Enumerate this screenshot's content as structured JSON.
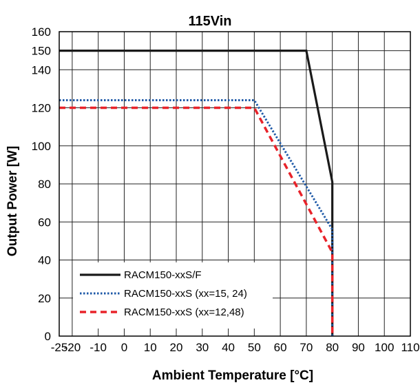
{
  "chart_data": {
    "type": "line",
    "title": "115Vin",
    "xlabel": "Ambient Temperature [°C]",
    "ylabel": "Output Power [W]",
    "xlim": [
      -25,
      110
    ],
    "ylim": [
      0,
      160
    ],
    "xticks": [
      "-25",
      "-20",
      "-10",
      "0",
      "10",
      "20",
      "30",
      "40",
      "50",
      "60",
      "70",
      "80",
      "90",
      "100",
      "110"
    ],
    "yticks": [
      "0",
      "20",
      "40",
      "60",
      "80",
      "100",
      "120",
      "140",
      "150",
      "160"
    ],
    "grid": true,
    "legend_position": "bottom-left",
    "series": [
      {
        "name": "RACM150-xxS/F",
        "color": "#1a1a1a",
        "style": "solid",
        "x": [
          -25,
          70,
          80,
          80
        ],
        "y": [
          150,
          150,
          81,
          0
        ]
      },
      {
        "name": "RACM150-xxS (xx=15, 24)",
        "color": "#1f5aa8",
        "style": "dotted",
        "x": [
          -25,
          50,
          80,
          80
        ],
        "y": [
          124,
          124,
          56,
          0
        ]
      },
      {
        "name": "RACM150-xxS (xx=12,48)",
        "color": "#e8232a",
        "style": "dashed",
        "x": [
          -25,
          50,
          80,
          80
        ],
        "y": [
          120,
          120,
          44,
          0
        ]
      }
    ]
  }
}
